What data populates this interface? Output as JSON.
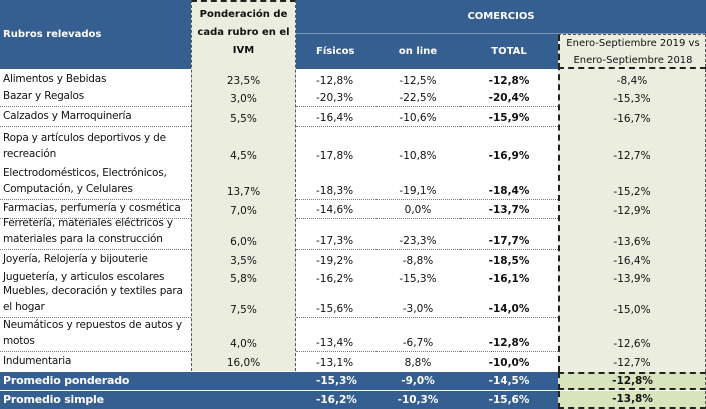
{
  "header": {
    "rubros": "Rubros relevados",
    "ponderacion": "Ponderación de cada rubro en el IVM",
    "comercios": "COMERCIOS",
    "fisicos": "Físicos",
    "online": "on line",
    "total": "TOTAL",
    "comparacion_line1": "Enero-Septiembre 2019 vs",
    "comparacion_line2": "Enero-Septiembre 2018"
  },
  "rows": [
    {
      "rubro": "Alimentos y  Bebidas",
      "ponderacion": "23,5%",
      "fisicos": "-12,8%",
      "online": "-12,5%",
      "total": "-12,8%",
      "comparacion": "-8,4%"
    },
    {
      "rubro": "Bazar y Regalos",
      "ponderacion": "3,0%",
      "fisicos": "-20,3%",
      "online": "-22,5%",
      "total": "-20,4%",
      "comparacion": "-15,3%"
    },
    {
      "rubro": "Calzados y  Marroquinería",
      "ponderacion": "5,5%",
      "fisicos": "-16,4%",
      "online": "-10,6%",
      "total": "-15,9%",
      "comparacion": "-16,7%"
    },
    {
      "rubro": "Ropa y  artículos deportivos y  de recreación",
      "ponderacion": "4,5%",
      "fisicos": "-17,8%",
      "online": "-10,8%",
      "total": "-16,9%",
      "comparacion": "-12,7%"
    },
    {
      "rubro": "Electrodomésticos, Electrónicos, Computación, y Celulares",
      "ponderacion": "13,7%",
      "fisicos": "-18,3%",
      "online": "-19,1%",
      "total": "-18,4%",
      "comparacion": "-15,2%"
    },
    {
      "rubro": "Farmacias, perfumería y cosmética",
      "ponderacion": "7,0%",
      "fisicos": "-14,6%",
      "online": "0,0%",
      "total": "-13,7%",
      "comparacion": "-12,9%"
    },
    {
      "rubro": "Ferretería, materiales eléctricos y materiales para la construcción",
      "ponderacion": "6,0%",
      "fisicos": "-17,3%",
      "online": "-23,3%",
      "total": "-17,7%",
      "comparacion": "-13,6%"
    },
    {
      "rubro": "Joyería, Relojería y bijouterie",
      "ponderacion": "3,5%",
      "fisicos": "-19,2%",
      "online": "-8,8%",
      "total": "-18,5%",
      "comparacion": "-16,4%"
    },
    {
      "rubro": "Juguetería, y  articulos escolares",
      "ponderacion": "5,8%",
      "fisicos": "-16,2%",
      "online": "-15,3%",
      "total": "-16,1%",
      "comparacion": "-13,9%"
    },
    {
      "rubro": "Muebles, decoración y textiles para el hogar",
      "ponderacion": "7,5%",
      "fisicos": "-15,6%",
      "online": "-3,0%",
      "total": "-14,0%",
      "comparacion": "-15,0%"
    },
    {
      "rubro": "Neumáticos y repuestos de autos y motos",
      "ponderacion": "4,0%",
      "fisicos": "-13,4%",
      "online": "-6,7%",
      "total": "-12,8%",
      "comparacion": "-12,6%"
    },
    {
      "rubro": "Indumentaria",
      "ponderacion": "16,0%",
      "fisicos": "-13,1%",
      "online": "8,8%",
      "total": "-10,0%",
      "comparacion": "-12,7%"
    }
  ],
  "promedio_ponderado": {
    "label": "Promedio ponderado",
    "fisicos": "-15,3%",
    "online": "-9,0%",
    "total": "-14,5%",
    "comparacion": "-12,8%"
  },
  "promedio_simple": {
    "label": "Promedio simple",
    "fisicos": "-16,2%",
    "online": "-10,3%",
    "total": "-15,6%",
    "comparacion": "-13,8%"
  },
  "colors": {
    "header_bg": "#355e91",
    "highlight_bg": "#ebeedf",
    "avg_highlight_bg": "#d8e4bc"
  }
}
